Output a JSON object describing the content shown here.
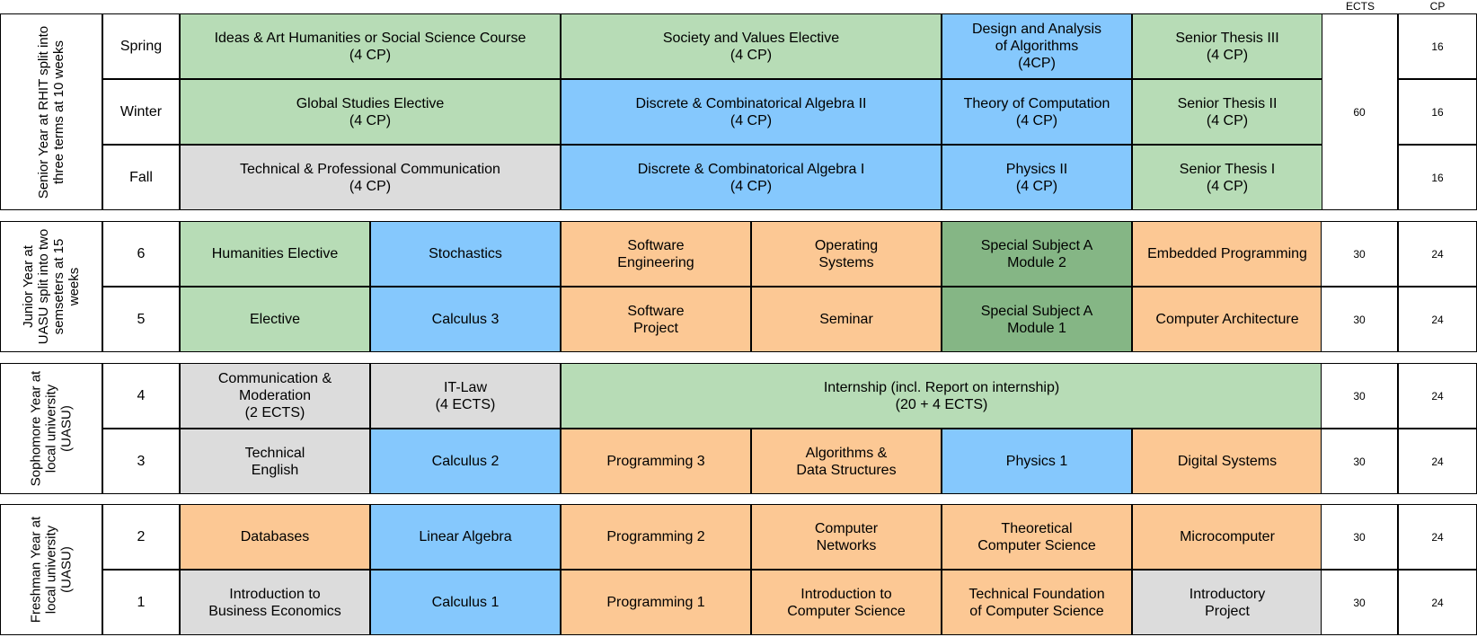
{
  "headers": {
    "ects": "ECTS",
    "cp": "CP"
  },
  "colors": {
    "green": "#b7dcb6",
    "blue": "#85c8fd",
    "orange": "#fcc894",
    "gray": "#dcdcdc",
    "dark": "#85b685",
    "white": "#ffffff"
  },
  "blocks": [
    {
      "year_label": "Senior Year at RHIT split into\nthree terms  at 10 weeks",
      "rows": [
        {
          "term": "Spring",
          "ects": "",
          "cp": "16",
          "courses": [
            {
              "text": "Ideas & Art Humanities or Social Science Course\n(4 CP)",
              "span": 2,
              "color": "green"
            },
            {
              "text": "Society and Values Elective\n(4 CP)",
              "span": 2,
              "color": "green"
            },
            {
              "text": "Design and Analysis\nof Algorithms\n(4CP)",
              "span": 1,
              "color": "blue"
            },
            {
              "text": "Senior Thesis III\n(4 CP)",
              "span": 1,
              "color": "green"
            }
          ]
        },
        {
          "term": "Winter",
          "ects": "60",
          "cp": "16",
          "courses": [
            {
              "text": "Global Studies Elective\n(4 CP)",
              "span": 2,
              "color": "green"
            },
            {
              "text": "Discrete & Combinatorical Algebra II\n(4 CP)",
              "span": 2,
              "color": "blue"
            },
            {
              "text": "Theory of Computation\n(4 CP)",
              "span": 1,
              "color": "blue"
            },
            {
              "text": "Senior Thesis II\n(4 CP)",
              "span": 1,
              "color": "green"
            }
          ]
        },
        {
          "term": "Fall",
          "ects": "",
          "cp": "16",
          "courses": [
            {
              "text": "Technical & Professional Communication\n(4 CP)",
              "span": 2,
              "color": "gray"
            },
            {
              "text": "Discrete & Combinatorical Algebra I\n(4 CP)",
              "span": 2,
              "color": "blue"
            },
            {
              "text": "Physics II\n(4 CP)",
              "span": 1,
              "color": "blue"
            },
            {
              "text": "Senior Thesis I\n(4 CP)",
              "span": 1,
              "color": "green"
            }
          ]
        }
      ]
    },
    {
      "year_label": "Junior Year at\nUASU split into two\nsemseters at 15\nweeks",
      "rows": [
        {
          "term": "6",
          "ects": "30",
          "cp": "24",
          "courses": [
            {
              "text": "Humanities Elective",
              "span": 1,
              "color": "green"
            },
            {
              "text": "Stochastics",
              "span": 1,
              "color": "blue"
            },
            {
              "text": "Software\nEngineering",
              "span": 1,
              "color": "orange"
            },
            {
              "text": "Operating\nSystems",
              "span": 1,
              "color": "orange"
            },
            {
              "text": "Special Subject A\nModule 2",
              "span": 1,
              "color": "dark"
            },
            {
              "text": "Embedded Programming",
              "span": 1,
              "color": "orange"
            }
          ]
        },
        {
          "term": "5",
          "ects": "30",
          "cp": "24",
          "courses": [
            {
              "text": "Elective",
              "span": 1,
              "color": "green"
            },
            {
              "text": "Calculus 3",
              "span": 1,
              "color": "blue"
            },
            {
              "text": "Software\nProject",
              "span": 1,
              "color": "orange"
            },
            {
              "text": "Seminar",
              "span": 1,
              "color": "orange"
            },
            {
              "text": "Special Subject A\nModule 1",
              "span": 1,
              "color": "dark"
            },
            {
              "text": "Computer Architecture",
              "span": 1,
              "color": "orange"
            }
          ]
        }
      ]
    },
    {
      "year_label": "Sophomore Year at\nlocal university\n(UASU)",
      "rows": [
        {
          "term": "4",
          "ects": "30",
          "cp": "24",
          "courses": [
            {
              "text": "Communication &\nModeration\n(2 ECTS)",
              "span": 1,
              "color": "gray"
            },
            {
              "text": "IT-Law\n(4 ECTS)",
              "span": 1,
              "color": "gray"
            },
            {
              "text": "Internship (incl. Report on internship)\n(20 + 4 ECTS)",
              "span": 4,
              "color": "green"
            }
          ]
        },
        {
          "term": "3",
          "ects": "30",
          "cp": "24",
          "courses": [
            {
              "text": "Technical\nEnglish",
              "span": 1,
              "color": "gray"
            },
            {
              "text": "Calculus 2",
              "span": 1,
              "color": "blue"
            },
            {
              "text": "Programming 3",
              "span": 1,
              "color": "orange"
            },
            {
              "text": "Algorithms &\nData Structures",
              "span": 1,
              "color": "orange"
            },
            {
              "text": "Physics 1",
              "span": 1,
              "color": "blue"
            },
            {
              "text": "Digital Systems",
              "span": 1,
              "color": "orange"
            }
          ]
        }
      ]
    },
    {
      "year_label": "Freshman Year at\nlocal university\n(UASU)",
      "rows": [
        {
          "term": "2",
          "ects": "30",
          "cp": "24",
          "courses": [
            {
              "text": "Databases",
              "span": 1,
              "color": "orange"
            },
            {
              "text": "Linear Algebra",
              "span": 1,
              "color": "blue"
            },
            {
              "text": "Programming 2",
              "span": 1,
              "color": "orange"
            },
            {
              "text": "Computer\nNetworks",
              "span": 1,
              "color": "orange"
            },
            {
              "text": "Theoretical\nComputer Science",
              "span": 1,
              "color": "orange"
            },
            {
              "text": "Microcomputer",
              "span": 1,
              "color": "orange"
            }
          ]
        },
        {
          "term": "1",
          "ects": "30",
          "cp": "24",
          "courses": [
            {
              "text": "Introduction to\nBusiness Economics",
              "span": 1,
              "color": "gray"
            },
            {
              "text": "Calculus 1",
              "span": 1,
              "color": "blue"
            },
            {
              "text": "Programming 1",
              "span": 1,
              "color": "orange"
            },
            {
              "text": "Introduction to\nComputer Science",
              "span": 1,
              "color": "orange"
            },
            {
              "text": "Technical Foundation\nof Computer Science",
              "span": 1,
              "color": "orange"
            },
            {
              "text": "Introductory\nProject",
              "span": 1,
              "color": "gray"
            }
          ]
        }
      ]
    }
  ]
}
